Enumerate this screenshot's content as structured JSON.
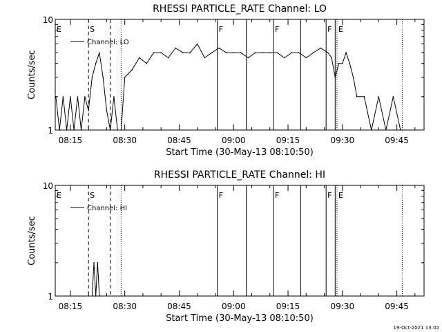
{
  "colors": {
    "background": "#ffffff",
    "foreground": "#000000"
  },
  "footer": {
    "timestamp": "19-Oct-2021 13:02"
  },
  "chart_data": [
    {
      "type": "line",
      "title": "RHESSI PARTICLE_RATE Channel: LO",
      "xlabel": "Start Time (30-May-13 08:10:50)",
      "ylabel": "Counts/sec",
      "yscale": "log",
      "ylim": [
        1,
        10
      ],
      "yticks": [
        "1",
        "10"
      ],
      "xlim": [
        "08:10:50",
        "09:52:30"
      ],
      "xticks": [
        "08:15",
        "08:30",
        "08:45",
        "09:00",
        "09:15",
        "09:30",
        "09:45"
      ],
      "legend": {
        "position": "top-left",
        "label": "Channel: LO"
      },
      "grid": false,
      "series": [
        {
          "name": "Channel: LO",
          "x": [
            "08:11:00",
            "08:12:00",
            "08:13:00",
            "08:14:00",
            "08:15:00",
            "08:16:00",
            "08:17:00",
            "08:18:00",
            "08:19:00",
            "08:20:00",
            "08:21:00",
            "08:22:00",
            "08:23:00",
            "08:24:00",
            "08:25:00",
            "08:26:00",
            "08:27:00",
            "08:28:00",
            "08:29:00",
            "08:30:00",
            "08:32:00",
            "08:34:00",
            "08:36:00",
            "08:38:00",
            "08:40:00",
            "08:42:00",
            "08:44:00",
            "08:46:00",
            "08:48:00",
            "08:50:00",
            "08:52:00",
            "08:54:00",
            "08:56:00",
            "08:58:00",
            "09:00:00",
            "09:02:00",
            "09:04:00",
            "09:06:00",
            "09:08:00",
            "09:10:00",
            "09:12:00",
            "09:14:00",
            "09:16:00",
            "09:18:00",
            "09:20:00",
            "09:22:00",
            "09:24:00",
            "09:26:00",
            "09:27:00",
            "09:28:00",
            "09:29:00",
            "09:30:00",
            "09:31:00",
            "09:32:00",
            "09:33:00",
            "09:34:00",
            "09:36:00",
            "09:38:00",
            "09:40:00",
            "09:42:00",
            "09:44:00",
            "09:46:00"
          ],
          "y": [
            2,
            1,
            2,
            1,
            2,
            1,
            2,
            1,
            2,
            1.5,
            3,
            4,
            5,
            3,
            1.5,
            1,
            2,
            1,
            1,
            3,
            3.5,
            4.5,
            4,
            5,
            5,
            4.5,
            5.5,
            5,
            5,
            6,
            4.5,
            5,
            5.5,
            5,
            5,
            5,
            4.5,
            5,
            5,
            5,
            5,
            4.5,
            5,
            5,
            4.5,
            5,
            5.5,
            5,
            4.5,
            3,
            4,
            4,
            5,
            4,
            3,
            2,
            2,
            1,
            2,
            1,
            2,
            1
          ]
        }
      ],
      "flags": [
        {
          "label": "E",
          "time": "08:10:50",
          "line": "none"
        },
        {
          "label": "S",
          "time": "08:20:00",
          "line": "dashed"
        },
        {
          "label": "",
          "time": "08:26:00",
          "line": "dashed"
        },
        {
          "label": "",
          "time": "08:29:00",
          "line": "dotted"
        },
        {
          "label": "F",
          "time": "08:55:30",
          "line": "solid"
        },
        {
          "label": "",
          "time": "09:03:30",
          "line": "solid"
        },
        {
          "label": "F",
          "time": "09:11:00",
          "line": "solid"
        },
        {
          "label": "",
          "time": "09:18:30",
          "line": "solid"
        },
        {
          "label": "F",
          "time": "09:25:30",
          "line": "solid"
        },
        {
          "label": "",
          "time": "09:28:00",
          "line": "solid"
        },
        {
          "label": "E",
          "time": "09:28:30",
          "line": "dotted"
        },
        {
          "label": "",
          "time": "09:46:30",
          "line": "dotted"
        }
      ]
    },
    {
      "type": "line",
      "title": "RHESSI PARTICLE_RATE Channel: HI",
      "xlabel": "Start Time (30-May-13 08:10:50)",
      "ylabel": "Counts/sec",
      "yscale": "log",
      "ylim": [
        1,
        10
      ],
      "yticks": [
        "1",
        "10"
      ],
      "xlim": [
        "08:10:50",
        "09:52:30"
      ],
      "xticks": [
        "08:15",
        "08:30",
        "08:45",
        "09:00",
        "09:15",
        "09:30",
        "09:45"
      ],
      "legend": {
        "position": "top-left",
        "label": "Channel: HI"
      },
      "grid": false,
      "series": [
        {
          "name": "Channel: HI",
          "x": [
            "08:21:00",
            "08:21:30",
            "08:22:00",
            "08:22:30",
            "08:23:00"
          ],
          "y": [
            1,
            2,
            1,
            2,
            1
          ]
        }
      ],
      "flags": [
        {
          "label": "E",
          "time": "08:10:50",
          "line": "none"
        },
        {
          "label": "S",
          "time": "08:20:00",
          "line": "dashed"
        },
        {
          "label": "",
          "time": "08:26:00",
          "line": "dashed"
        },
        {
          "label": "",
          "time": "08:29:00",
          "line": "dotted"
        },
        {
          "label": "F",
          "time": "08:55:30",
          "line": "solid"
        },
        {
          "label": "",
          "time": "09:03:30",
          "line": "solid"
        },
        {
          "label": "F",
          "time": "09:11:00",
          "line": "solid"
        },
        {
          "label": "",
          "time": "09:18:30",
          "line": "solid"
        },
        {
          "label": "F",
          "time": "09:25:30",
          "line": "solid"
        },
        {
          "label": "",
          "time": "09:28:00",
          "line": "solid"
        },
        {
          "label": "E",
          "time": "09:28:30",
          "line": "dotted"
        },
        {
          "label": "",
          "time": "09:46:30",
          "line": "dotted"
        }
      ]
    }
  ]
}
